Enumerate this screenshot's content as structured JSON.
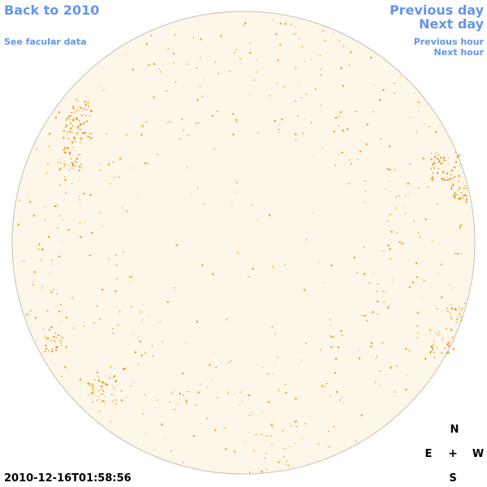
{
  "nav": {
    "back_label": "Back to 2010",
    "facular_label": "See facular data",
    "prev_day_label": "Previous day",
    "next_day_label": "Next day",
    "prev_hour_label": "Previous hour",
    "next_hour_label": "Next hour"
  },
  "compass": {
    "north": "N",
    "east": "E",
    "center": "+",
    "west": "W",
    "south": "S"
  },
  "timestamp": "2010-12-16T01:58:56",
  "colors": {
    "link": "#6495ed",
    "disk_fill": "#fdf7ea",
    "disk_border": "#c8c0b0",
    "feature": "#f28c00"
  }
}
